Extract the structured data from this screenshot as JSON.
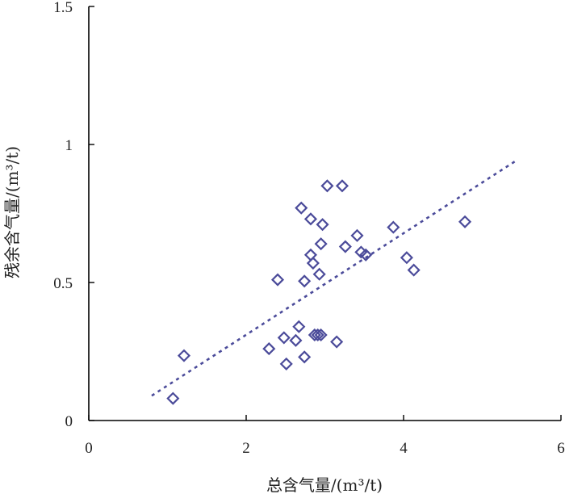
{
  "chart_data": {
    "type": "scatter",
    "xlabel": "总含气量/(m³/t)",
    "ylabel": "残余含气量/(m³/t)",
    "xlim": [
      0,
      6
    ],
    "ylim": [
      0,
      1.5
    ],
    "xticks": [
      "0",
      "2",
      "4",
      "6"
    ],
    "yticks": [
      "0",
      "0.5",
      "1",
      "1.5"
    ],
    "grid": false,
    "legend": "none",
    "marker": "diamond-open",
    "colors": {
      "marker": "#4b4b9a",
      "trend": "#4b4b9a",
      "axis": "#000000"
    },
    "points": [
      {
        "x": 1.07,
        "y": 0.08
      },
      {
        "x": 1.21,
        "y": 0.235
      },
      {
        "x": 2.29,
        "y": 0.26
      },
      {
        "x": 2.4,
        "y": 0.51
      },
      {
        "x": 2.48,
        "y": 0.3
      },
      {
        "x": 2.51,
        "y": 0.205
      },
      {
        "x": 2.63,
        "y": 0.29
      },
      {
        "x": 2.67,
        "y": 0.34
      },
      {
        "x": 2.7,
        "y": 0.77
      },
      {
        "x": 2.74,
        "y": 0.23
      },
      {
        "x": 2.74,
        "y": 0.505
      },
      {
        "x": 2.82,
        "y": 0.6
      },
      {
        "x": 2.82,
        "y": 0.73
      },
      {
        "x": 2.85,
        "y": 0.57
      },
      {
        "x": 2.87,
        "y": 0.31
      },
      {
        "x": 2.91,
        "y": 0.31
      },
      {
        "x": 2.93,
        "y": 0.53
      },
      {
        "x": 2.95,
        "y": 0.31
      },
      {
        "x": 2.95,
        "y": 0.64
      },
      {
        "x": 2.97,
        "y": 0.71
      },
      {
        "x": 3.03,
        "y": 0.85
      },
      {
        "x": 3.15,
        "y": 0.285
      },
      {
        "x": 3.22,
        "y": 0.85
      },
      {
        "x": 3.26,
        "y": 0.63
      },
      {
        "x": 3.41,
        "y": 0.67
      },
      {
        "x": 3.46,
        "y": 0.61
      },
      {
        "x": 3.52,
        "y": 0.6
      },
      {
        "x": 3.87,
        "y": 0.7
      },
      {
        "x": 4.04,
        "y": 0.59
      },
      {
        "x": 4.13,
        "y": 0.545
      },
      {
        "x": 4.78,
        "y": 0.72
      }
    ],
    "trendline": {
      "style": "dotted",
      "x": [
        0.8,
        5.45
      ],
      "y": [
        0.09,
        0.945
      ]
    }
  }
}
